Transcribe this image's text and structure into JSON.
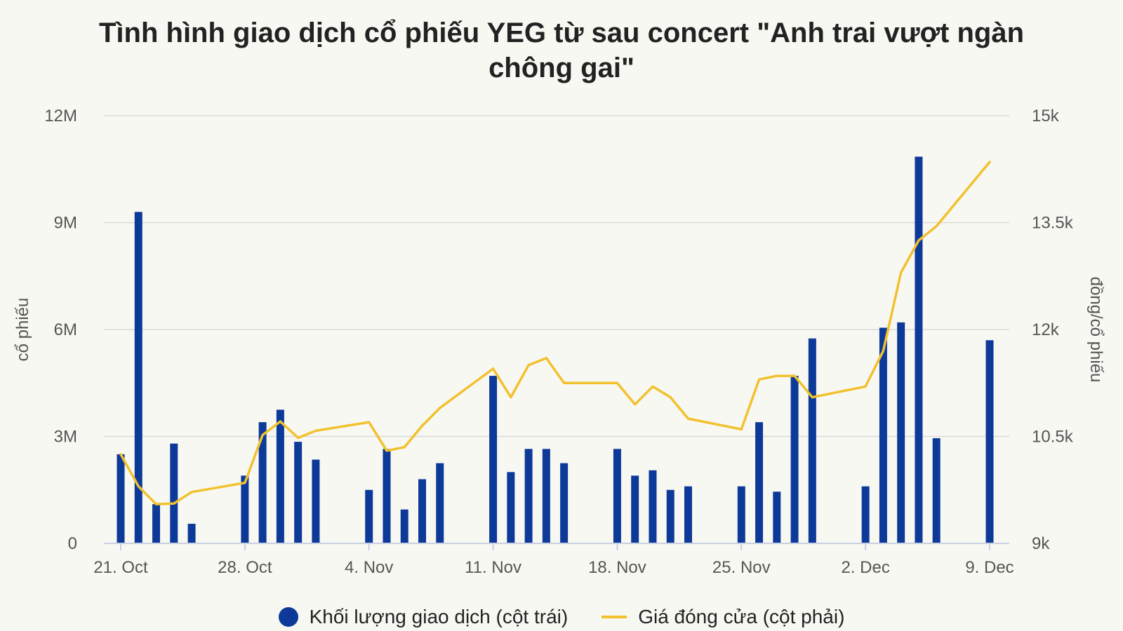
{
  "chart_data": {
    "type": "bar+line",
    "title_lines": [
      "Tình hình giao dịch cổ phiếu YEG từ sau concert \"Anh trai vượt ngàn",
      "chông gai\""
    ],
    "y_left": {
      "label": "cổ phiếu",
      "lim": [
        0,
        12000000
      ],
      "ticks": [
        0,
        3000000,
        6000000,
        9000000,
        12000000
      ],
      "tick_labels": [
        "0",
        "3M",
        "6M",
        "9M",
        "12M"
      ]
    },
    "y_right": {
      "label": "đồng/cổ phiếu",
      "lim": [
        9000,
        15000
      ],
      "ticks": [
        9000,
        10500,
        12000,
        13500,
        15000
      ],
      "tick_labels": [
        "9k",
        "10.5k",
        "12k",
        "13.5k",
        "15k"
      ]
    },
    "x_axis": {
      "start": "2024-10-21",
      "end": "2024-12-09",
      "ticks": [
        "2024-10-21",
        "2024-10-28",
        "2024-11-04",
        "2024-11-11",
        "2024-11-18",
        "2024-11-25",
        "2024-12-02",
        "2024-12-09"
      ],
      "tick_labels": [
        "21. Oct",
        "28. Oct",
        "4. Nov",
        "11. Nov",
        "18. Nov",
        "25. Nov",
        "2. Dec",
        "9. Dec"
      ]
    },
    "grid": true,
    "legend_position": "bottom",
    "series": [
      {
        "name": "Khối lượng giao dịch (cột trái)",
        "type": "bar",
        "axis": "left",
        "color": "#0d3a99",
        "x": [
          "2024-10-21",
          "2024-10-22",
          "2024-10-23",
          "2024-10-24",
          "2024-10-25",
          "2024-10-28",
          "2024-10-29",
          "2024-10-30",
          "2024-10-31",
          "2024-11-01",
          "2024-11-04",
          "2024-11-05",
          "2024-11-06",
          "2024-11-07",
          "2024-11-08",
          "2024-11-11",
          "2024-11-12",
          "2024-11-13",
          "2024-11-14",
          "2024-11-15",
          "2024-11-18",
          "2024-11-19",
          "2024-11-20",
          "2024-11-21",
          "2024-11-22",
          "2024-11-25",
          "2024-11-26",
          "2024-11-27",
          "2024-11-28",
          "2024-11-29",
          "2024-12-02",
          "2024-12-03",
          "2024-12-04",
          "2024-12-05",
          "2024-12-06",
          "2024-12-09"
        ],
        "values": [
          2500000,
          9300000,
          1100000,
          2800000,
          550000,
          1900000,
          3400000,
          3750000,
          2850000,
          2350000,
          1500000,
          2650000,
          950000,
          1800000,
          2250000,
          4700000,
          2000000,
          2650000,
          2650000,
          2250000,
          2650000,
          1900000,
          2050000,
          1500000,
          1600000,
          1600000,
          3400000,
          1450000,
          4700000,
          5750000,
          1600000,
          6050000,
          6200000,
          10850000,
          2950000,
          5700000
        ]
      },
      {
        "name": "Giá đóng cửa (cột phải)",
        "type": "line",
        "axis": "right",
        "color": "#f2c12e",
        "x": [
          "2024-10-21",
          "2024-10-22",
          "2024-10-23",
          "2024-10-24",
          "2024-10-25",
          "2024-10-28",
          "2024-10-29",
          "2024-10-30",
          "2024-10-31",
          "2024-11-01",
          "2024-11-04",
          "2024-11-05",
          "2024-11-06",
          "2024-11-07",
          "2024-11-08",
          "2024-11-11",
          "2024-11-12",
          "2024-11-13",
          "2024-11-14",
          "2024-11-15",
          "2024-11-18",
          "2024-11-19",
          "2024-11-20",
          "2024-11-21",
          "2024-11-22",
          "2024-11-25",
          "2024-11-26",
          "2024-11-27",
          "2024-11-28",
          "2024-11-29",
          "2024-12-02",
          "2024-12-03",
          "2024-12-04",
          "2024-12-05",
          "2024-12-06",
          "2024-12-09"
        ],
        "values": [
          10250,
          9800,
          9550,
          9560,
          9720,
          9850,
          10520,
          10710,
          10480,
          10580,
          10700,
          10300,
          10350,
          10650,
          10900,
          11450,
          11050,
          11500,
          11600,
          11250,
          11250,
          10950,
          11200,
          11050,
          10750,
          10600,
          11300,
          11350,
          11350,
          11050,
          11200,
          11700,
          12800,
          13250,
          13450,
          14350
        ]
      }
    ]
  }
}
